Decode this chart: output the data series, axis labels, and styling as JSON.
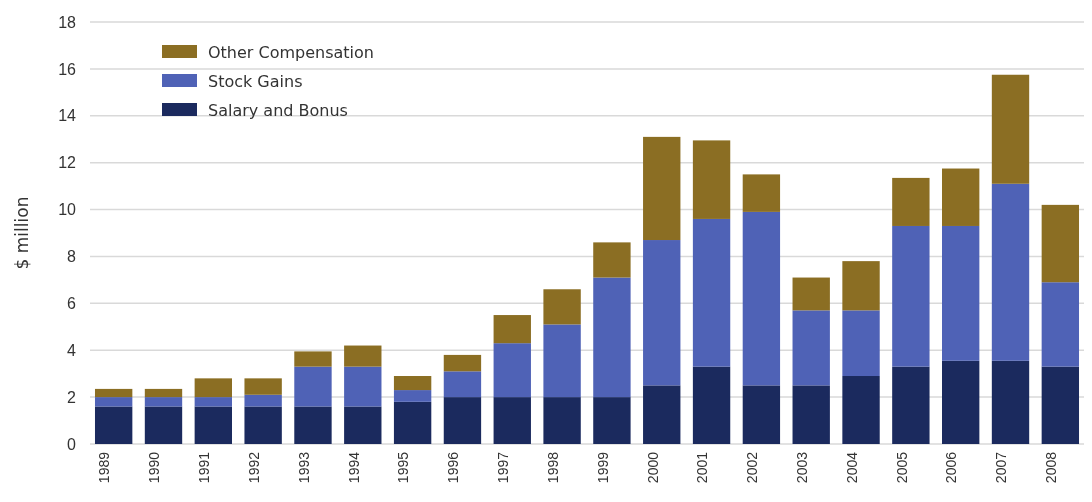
{
  "chart_data": {
    "type": "bar",
    "stacked": true,
    "ylabel": "$ million",
    "categories": [
      "1989",
      "1990",
      "1991",
      "1992",
      "1993",
      "1994",
      "1995",
      "1996",
      "1997",
      "1998",
      "1999",
      "2000",
      "2001",
      "2002",
      "2003",
      "2004",
      "2005",
      "2006",
      "2007",
      "2008"
    ],
    "series": [
      {
        "name": "Salary and Bonus",
        "color": "#1b2a5e",
        "values": [
          1.6,
          1.6,
          1.6,
          1.6,
          1.6,
          1.6,
          1.8,
          2.0,
          2.0,
          2.0,
          2.0,
          2.5,
          3.3,
          2.5,
          2.5,
          2.9,
          3.3,
          3.55,
          3.55,
          3.3
        ]
      },
      {
        "name": "Stock Gains",
        "color": "#4f62b6",
        "values": [
          0.4,
          0.4,
          0.4,
          0.5,
          1.7,
          1.7,
          0.5,
          1.1,
          2.3,
          3.1,
          5.1,
          6.2,
          6.3,
          7.4,
          3.2,
          2.8,
          6.0,
          5.75,
          7.55,
          3.6
        ]
      },
      {
        "name": "Other Compensation",
        "color": "#8b6e23",
        "values": [
          0.35,
          0.35,
          0.8,
          0.7,
          0.65,
          0.9,
          0.6,
          0.7,
          1.2,
          1.5,
          1.5,
          4.4,
          3.35,
          1.6,
          1.4,
          2.1,
          2.05,
          2.45,
          4.65,
          3.3
        ]
      }
    ],
    "ylim": [
      0,
      18
    ],
    "yticks": [
      0,
      2,
      4,
      6,
      8,
      10,
      12,
      14,
      16,
      18
    ],
    "grid": "y",
    "legend": "top left"
  }
}
